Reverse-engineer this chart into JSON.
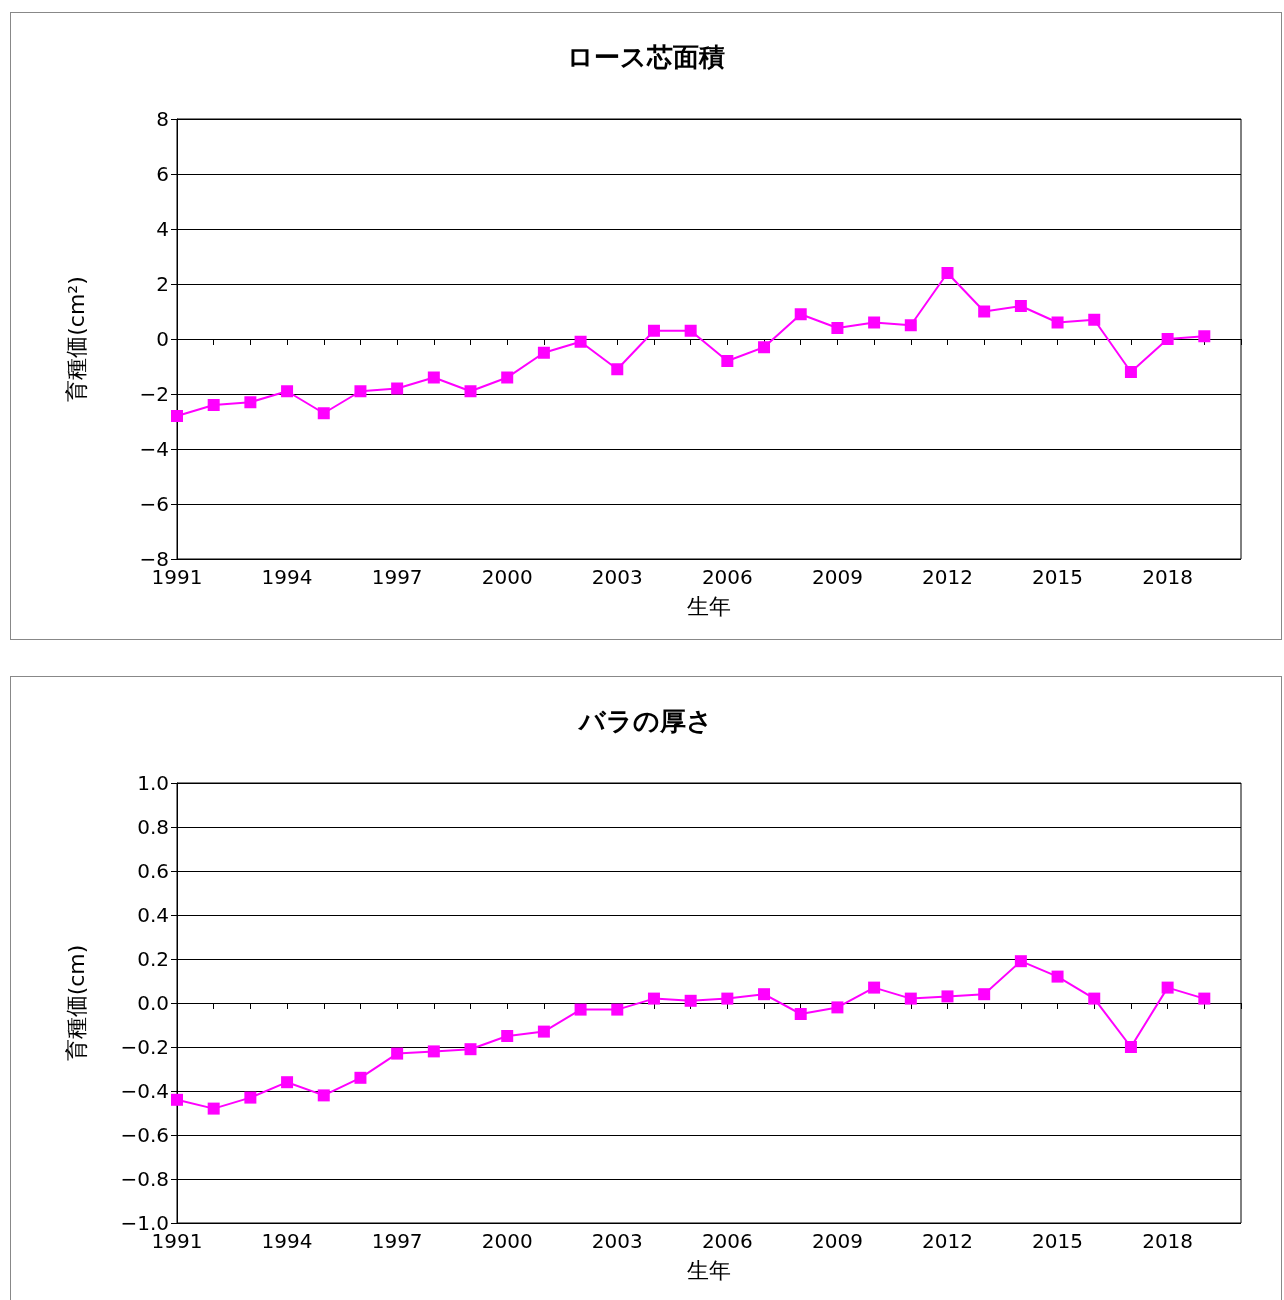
{
  "chart_data": [
    {
      "type": "line",
      "title": "ロース芯面積",
      "xlabel": "生年",
      "ylabel": "育種価(cm²)",
      "x": [
        1991,
        1992,
        1993,
        1994,
        1995,
        1996,
        1997,
        1998,
        1999,
        2000,
        2001,
        2002,
        2003,
        2004,
        2005,
        2006,
        2007,
        2008,
        2009,
        2010,
        2011,
        2012,
        2013,
        2014,
        2015,
        2016,
        2017,
        2018,
        2019
      ],
      "series": [
        {
          "color": "#ff00ff",
          "values": [
            -2.8,
            -2.4,
            -2.3,
            -1.9,
            -2.7,
            -1.9,
            -1.8,
            -1.4,
            -1.9,
            -1.4,
            -0.5,
            -0.1,
            -1.1,
            0.3,
            0.3,
            -0.8,
            -0.3,
            0.9,
            0.4,
            0.6,
            0.5,
            2.4,
            1.0,
            1.2,
            0.6,
            0.7,
            -1.2,
            0.0,
            0.1
          ]
        }
      ],
      "xlim": [
        1991,
        2020
      ],
      "xticks": [
        1991,
        {
          "value": 1992,
          "label": null
        },
        {
          "value": 1993,
          "label": null
        },
        1994,
        {
          "value": 1995,
          "label": null
        },
        {
          "value": 1996,
          "label": null
        },
        1997,
        {
          "value": 1998,
          "label": null
        },
        {
          "value": 1999,
          "label": null
        },
        2000,
        {
          "value": 2001,
          "label": null
        },
        {
          "value": 2002,
          "label": null
        },
        2003,
        {
          "value": 2004,
          "label": null
        },
        {
          "value": 2005,
          "label": null
        },
        2006,
        {
          "value": 2007,
          "label": null
        },
        {
          "value": 2008,
          "label": null
        },
        2009,
        {
          "value": 2010,
          "label": null
        },
        {
          "value": 2011,
          "label": null
        },
        2012,
        {
          "value": 2013,
          "label": null
        },
        {
          "value": 2014,
          "label": null
        },
        2015,
        {
          "value": 2016,
          "label": null
        },
        {
          "value": 2017,
          "label": null
        },
        2018,
        {
          "value": 2019,
          "label": null
        },
        {
          "value": 2020,
          "label": null
        }
      ],
      "ylim": [
        -8,
        8
      ],
      "yticks": [
        {
          "value": -8,
          "label": "−8"
        },
        {
          "value": -6,
          "label": "−6"
        },
        {
          "value": -4,
          "label": "−4"
        },
        {
          "value": -2,
          "label": "−2"
        },
        0,
        2,
        4,
        6,
        8
      ],
      "grid": "y",
      "marker": "square",
      "line_style": "solid"
    },
    {
      "type": "line",
      "title": "バラの厚さ",
      "xlabel": "生年",
      "ylabel": "育種価(cm)",
      "x": [
        1991,
        1992,
        1993,
        1994,
        1995,
        1996,
        1997,
        1998,
        1999,
        2000,
        2001,
        2002,
        2003,
        2004,
        2005,
        2006,
        2007,
        2008,
        2009,
        2010,
        2011,
        2012,
        2013,
        2014,
        2015,
        2016,
        2017,
        2018,
        2019
      ],
      "series": [
        {
          "color": "#ff00ff",
          "values": [
            -0.44,
            -0.48,
            -0.43,
            -0.36,
            -0.42,
            -0.34,
            -0.23,
            -0.22,
            -0.21,
            -0.15,
            -0.13,
            -0.03,
            -0.03,
            0.02,
            0.01,
            0.02,
            0.04,
            -0.05,
            -0.02,
            0.07,
            0.02,
            0.03,
            0.04,
            0.19,
            0.12,
            0.02,
            -0.2,
            0.07,
            0.02
          ]
        }
      ],
      "xlim": [
        1991,
        2020
      ],
      "xticks": [
        1991,
        {
          "value": 1992,
          "label": null
        },
        {
          "value": 1993,
          "label": null
        },
        1994,
        {
          "value": 1995,
          "label": null
        },
        {
          "value": 1996,
          "label": null
        },
        1997,
        {
          "value": 1998,
          "label": null
        },
        {
          "value": 1999,
          "label": null
        },
        2000,
        {
          "value": 2001,
          "label": null
        },
        {
          "value": 2002,
          "label": null
        },
        2003,
        {
          "value": 2004,
          "label": null
        },
        {
          "value": 2005,
          "label": null
        },
        2006,
        {
          "value": 2007,
          "label": null
        },
        {
          "value": 2008,
          "label": null
        },
        2009,
        {
          "value": 2010,
          "label": null
        },
        {
          "value": 2011,
          "label": null
        },
        2012,
        {
          "value": 2013,
          "label": null
        },
        {
          "value": 2014,
          "label": null
        },
        2015,
        {
          "value": 2016,
          "label": null
        },
        {
          "value": 2017,
          "label": null
        },
        2018,
        {
          "value": 2019,
          "label": null
        },
        {
          "value": 2020,
          "label": null
        }
      ],
      "ylim": [
        -1.0,
        1.0
      ],
      "yticks": [
        {
          "value": -1.0,
          "label": "−1.0"
        },
        {
          "value": -0.8,
          "label": "−0.8"
        },
        {
          "value": -0.6,
          "label": "−0.6"
        },
        {
          "value": -0.4,
          "label": "−0.4"
        },
        {
          "value": -0.2,
          "label": "−0.2"
        },
        {
          "value": 0,
          "label": "0.0"
        },
        {
          "value": 0.2,
          "label": "0.2"
        },
        {
          "value": 0.4,
          "label": "0.4"
        },
        {
          "value": 0.6,
          "label": "0.6"
        },
        {
          "value": 0.8,
          "label": "0.8"
        },
        {
          "value": 1.0,
          "label": "1.0"
        }
      ],
      "grid": "y",
      "marker": "square",
      "line_style": "solid"
    }
  ]
}
